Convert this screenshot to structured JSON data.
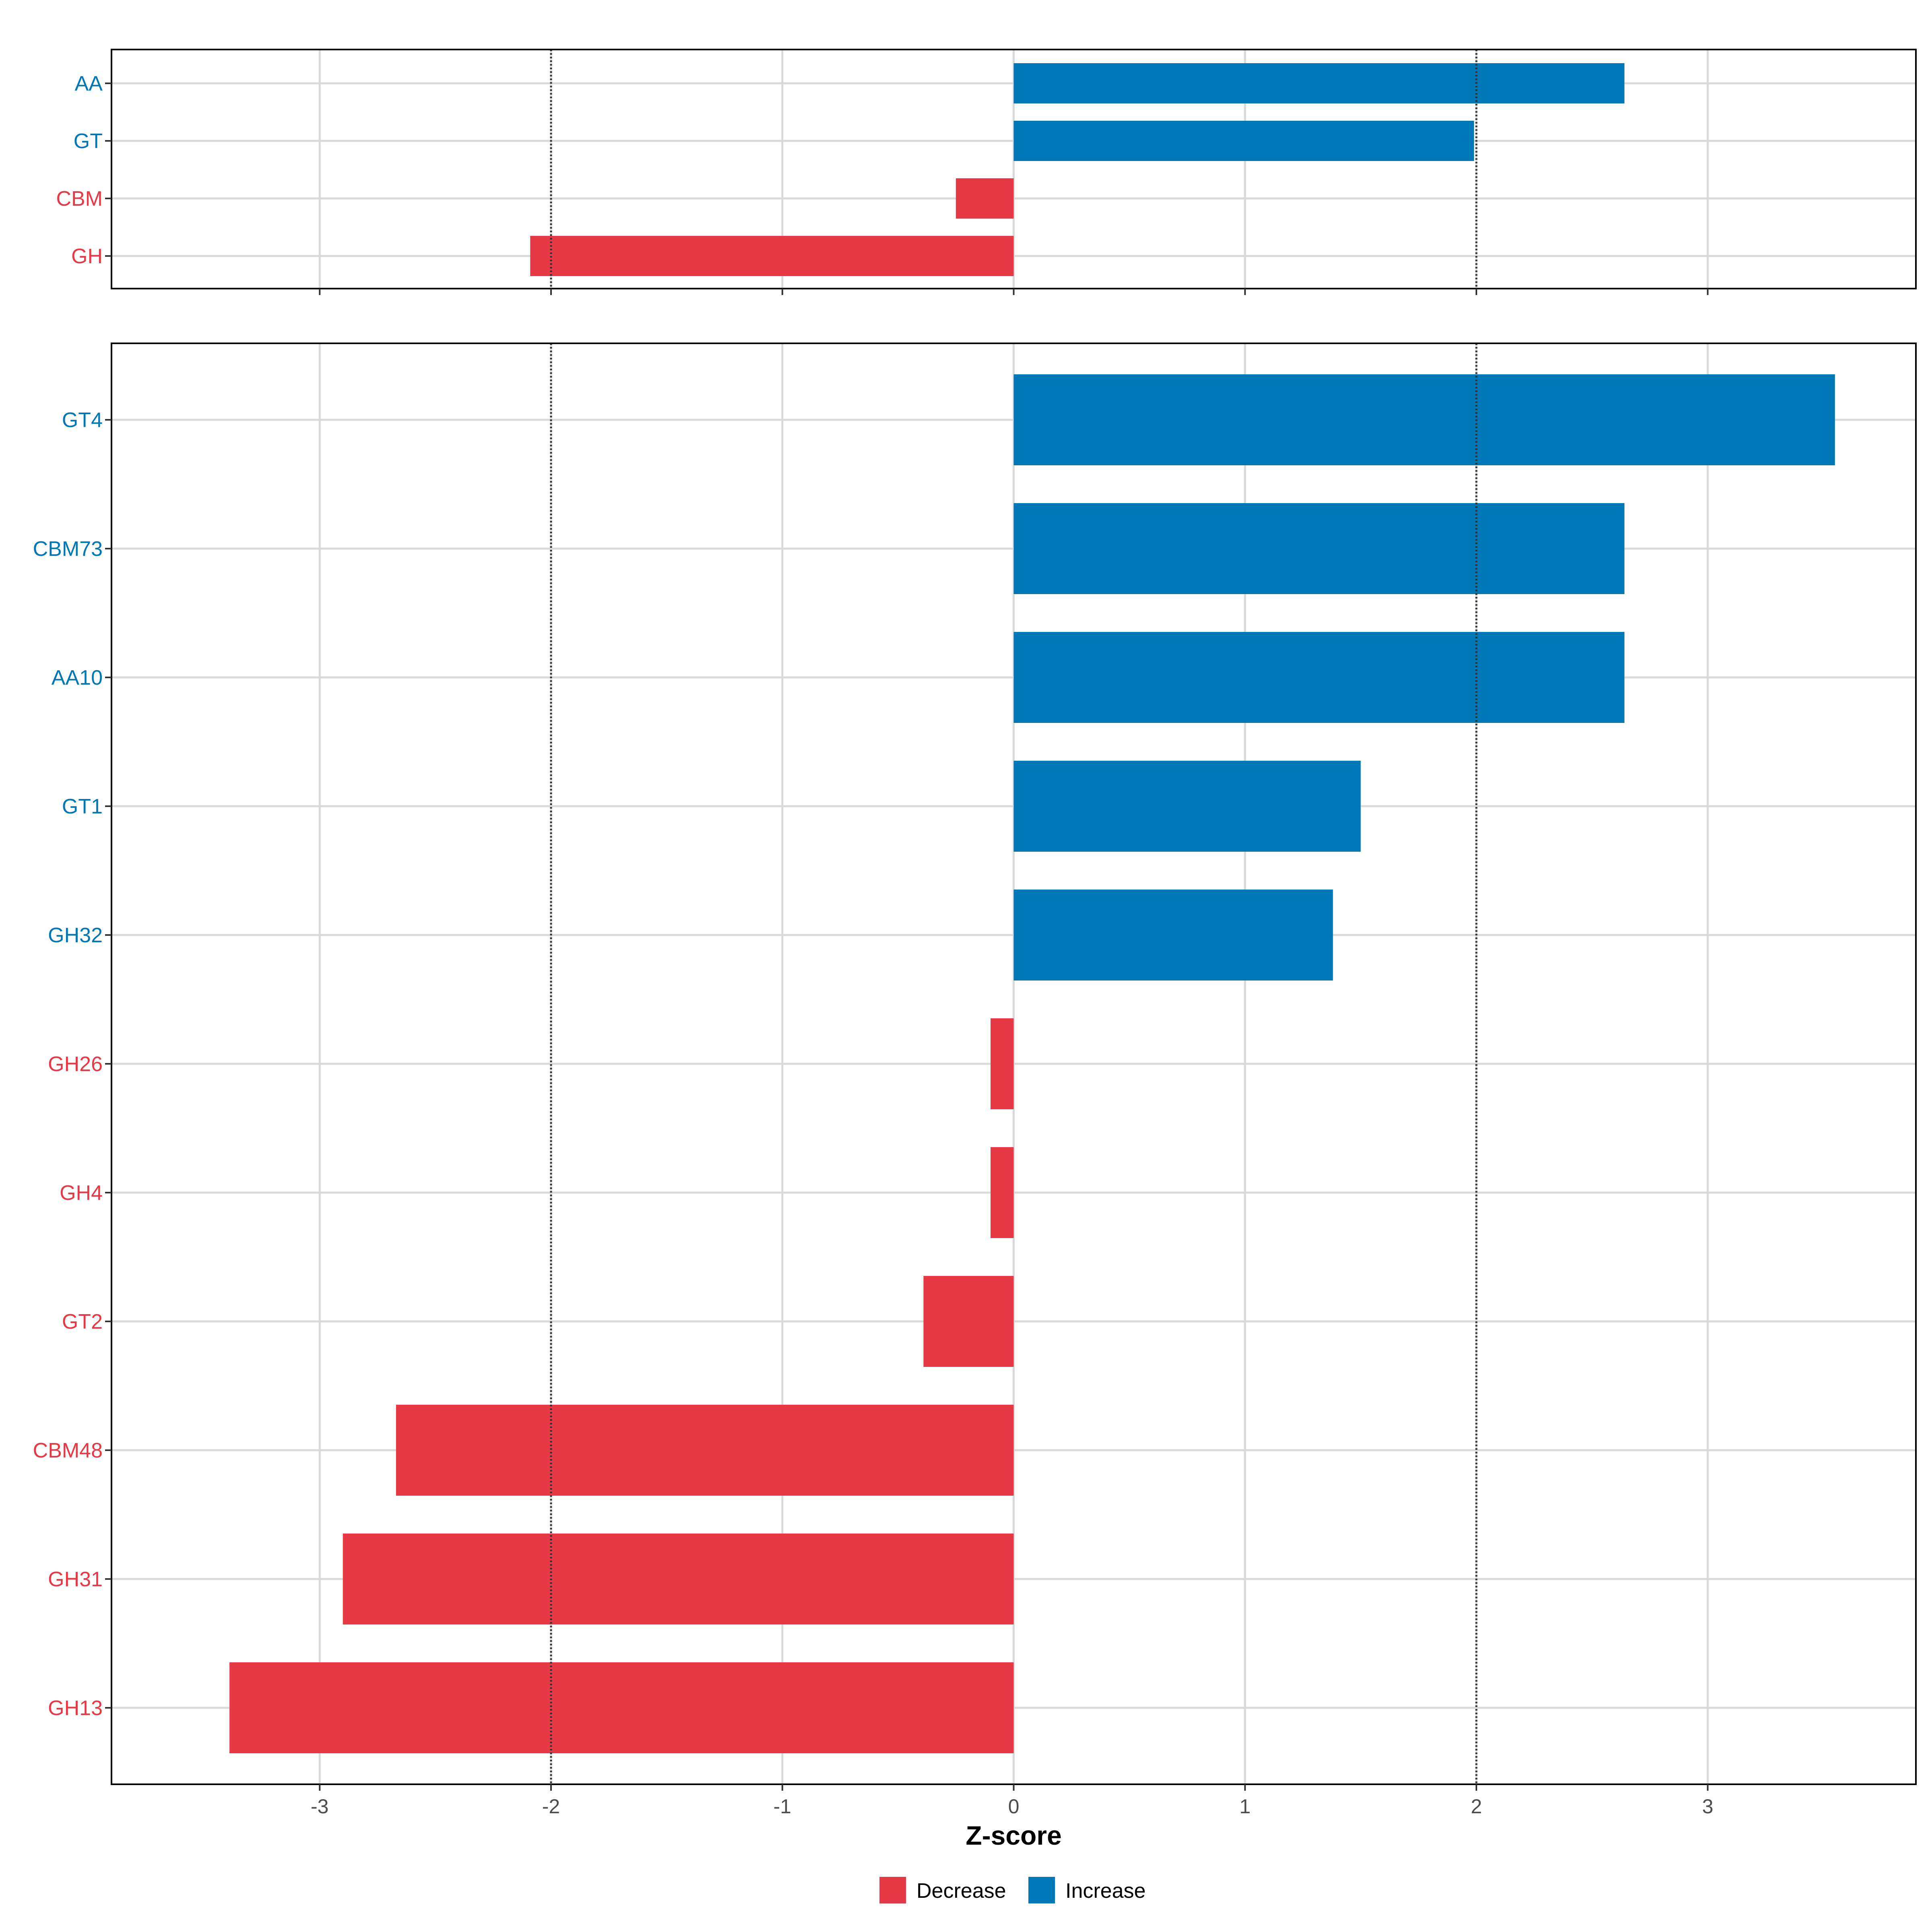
{
  "colors": {
    "decrease": "#e63946",
    "increase": "#0077b6",
    "grid": "#d9d9d9",
    "panel_border": "#000000",
    "reference_line": "#333333"
  },
  "chart_data": [
    {
      "type": "bar",
      "orientation": "horizontal",
      "panel": "top",
      "categories": [
        "AA",
        "GT",
        "CBM",
        "GH"
      ],
      "values": [
        2.64,
        1.99,
        -0.25,
        -2.09
      ],
      "direction": [
        "Increase",
        "Increase",
        "Decrease",
        "Decrease"
      ],
      "xlim": [
        -3.9,
        3.9
      ],
      "xticks": [
        -3,
        -2,
        -1,
        0,
        1,
        2,
        3
      ],
      "reference_lines": [
        -2,
        2
      ],
      "grid": true
    },
    {
      "type": "bar",
      "orientation": "horizontal",
      "panel": "bottom",
      "categories": [
        "GT4",
        "CBM73",
        "AA10",
        "GT1",
        "GH32",
        "GH26",
        "GH4",
        "GT2",
        "CBM48",
        "GH31",
        "GH13"
      ],
      "values": [
        3.55,
        2.64,
        2.64,
        1.5,
        1.38,
        -0.1,
        -0.1,
        -0.39,
        -2.67,
        -2.9,
        -3.39
      ],
      "direction": [
        "Increase",
        "Increase",
        "Increase",
        "Increase",
        "Increase",
        "Decrease",
        "Decrease",
        "Decrease",
        "Decrease",
        "Decrease",
        "Decrease"
      ],
      "xlim": [
        -3.9,
        3.9
      ],
      "xticks": [
        -3,
        -2,
        -1,
        0,
        1,
        2,
        3
      ],
      "xtick_labels": [
        "-3",
        "-2",
        "-1",
        "0",
        "1",
        "2",
        "3"
      ],
      "xlabel": "Z-score",
      "reference_lines": [
        -2,
        2
      ],
      "grid": true
    }
  ],
  "legend": {
    "placement": "bottom",
    "items": [
      {
        "label": "Decrease",
        "key": "decrease"
      },
      {
        "label": "Increase",
        "key": "increase"
      }
    ]
  }
}
